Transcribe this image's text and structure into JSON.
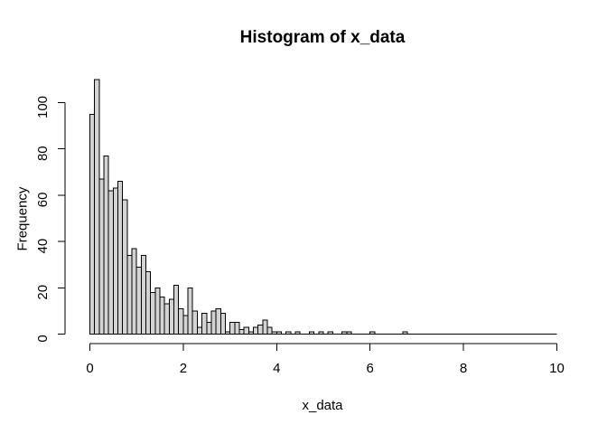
{
  "title": "Histogram of x_data",
  "x_axis": {
    "label": "x_data",
    "ticks": [
      0,
      2,
      4,
      6,
      8,
      10
    ],
    "range": [
      0,
      10
    ]
  },
  "y_axis": {
    "label": "Frequency",
    "ticks": [
      0,
      20,
      40,
      60,
      80,
      100
    ],
    "range": [
      0,
      100
    ]
  },
  "colors": {
    "background": "#ffffff",
    "bar_fill": "#d3d3d3",
    "bar_border": "#000000",
    "axis": "#000000",
    "text": "#000000"
  },
  "chart_data": {
    "type": "bar",
    "subtype": "histogram",
    "title": "Histogram of x_data",
    "xlabel": "x_data",
    "ylabel": "Frequency",
    "bin_start": 0,
    "bin_width": 0.1,
    "xlim": [
      0,
      10
    ],
    "ylim": [
      0,
      110
    ],
    "grid": false,
    "legend": false,
    "values": [
      95,
      110,
      67,
      77,
      62,
      63,
      66,
      58,
      34,
      37,
      29,
      34,
      27,
      18,
      20,
      16,
      13,
      15,
      21,
      11,
      8,
      20,
      10,
      3,
      9,
      5,
      10,
      11,
      9,
      1,
      5,
      5,
      2,
      3,
      1,
      3,
      4,
      6,
      3,
      1,
      1,
      0,
      1,
      0,
      1,
      0,
      0,
      1,
      0,
      1,
      0,
      1,
      0,
      0,
      1,
      1,
      0,
      0,
      0,
      0,
      1,
      0,
      0,
      0,
      0,
      0,
      0,
      1,
      0,
      0
    ]
  }
}
